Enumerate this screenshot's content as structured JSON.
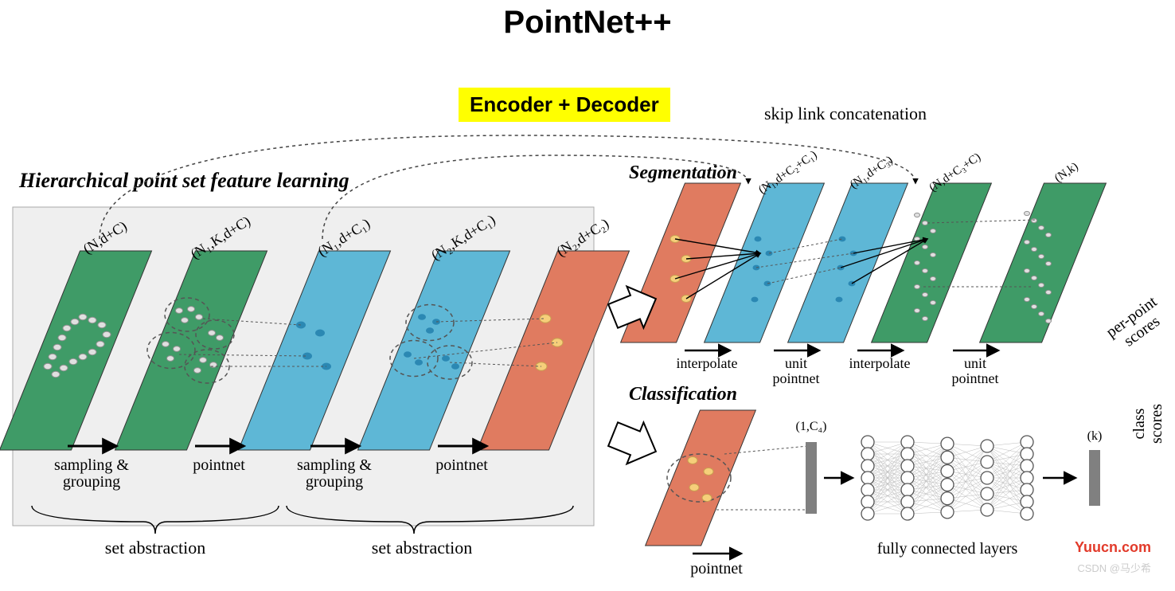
{
  "title": {
    "text": "PointNet++",
    "fontsize": 40,
    "color": "#000000"
  },
  "highlight": {
    "text": "Encoder + Decoder",
    "bg": "#ffff00",
    "color": "#000000",
    "fontsize": 26
  },
  "skip_label": {
    "text": "skip link concatenation",
    "fontsize": 22,
    "color": "#222222"
  },
  "left": {
    "heading": {
      "text": "Hierarchical point set feature learning",
      "fontsize": 26
    },
    "panel_bg": "#efefef",
    "panel_border": "#aaaaaa",
    "layers": [
      {
        "dim": "(N,d+C)",
        "fill": "#3f9b67",
        "points": "grey-many"
      },
      {
        "dim": "(N₁,K,d+C)",
        "fill": "#3f9b67",
        "points": "grey-groups"
      },
      {
        "dim": "(N₁,d+C₁)",
        "fill": "#5eb7d6",
        "points": "blue-few"
      },
      {
        "dim": "(N₂,K,d+C₁)",
        "fill": "#5eb7d6",
        "points": "blue-groups"
      },
      {
        "dim": "(N₂,d+C₂)",
        "fill": "#e07b60",
        "points": "orange-few"
      }
    ],
    "steps": [
      "sampling &\ngrouping",
      "pointnet",
      "sampling &\ngrouping",
      "pointnet"
    ],
    "brace": "set abstraction"
  },
  "seg": {
    "heading": {
      "text": "Segmentation",
      "fontsize": 24
    },
    "layers": [
      {
        "dim": "",
        "fill": "#e07b60"
      },
      {
        "dim": "(N₁,d+C₂+C₁)",
        "fill": "#5eb7d6"
      },
      {
        "dim": "(N₁,d+C₃)",
        "fill": "#5eb7d6"
      },
      {
        "dim": "(N,d+C₃+C)",
        "fill": "#3f9b67"
      },
      {
        "dim": "(N,k)",
        "fill": "#3f9b67"
      }
    ],
    "steps": [
      "interpolate",
      "unit\npointnet",
      "interpolate",
      "unit\npointnet"
    ],
    "out_label": "per-point\nscores"
  },
  "cls": {
    "heading": {
      "text": "Classification",
      "fontsize": 24
    },
    "layer": {
      "fill": "#e07b60"
    },
    "globfeat": {
      "dim": "(1,C₄)",
      "fill": "#808080"
    },
    "out": {
      "dim": "(k)",
      "fill": "#808080"
    },
    "steps": [
      "pointnet",
      "fully connected layers"
    ],
    "out_label": "class scores",
    "mlp": {
      "node_stroke": "#555555",
      "edge_color": "#bbbbbb",
      "cols": [
        7,
        7,
        6,
        5,
        7
      ]
    }
  },
  "colors": {
    "arrow": "#000000",
    "dotted": "#444444",
    "skew": 22,
    "grey_dot": "#e0e0e0",
    "grey_dot_stroke": "#909090",
    "orange_dot": "#f6cf7a",
    "orange_dot_stroke": "#c9a050",
    "blue_dot": "#2b88b3"
  },
  "watermark": {
    "text": "Yuucn.com",
    "color": "#e23a2a",
    "fontsize": 18
  },
  "csdn": {
    "text": "CSDN @马少希"
  }
}
